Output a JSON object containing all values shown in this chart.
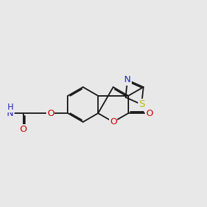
{
  "background_color": "#e8e8e8",
  "bond_color": "#1a1a1a",
  "lw": 1.4,
  "doff": 0.055,
  "figsize": [
    3.0,
    3.0
  ],
  "dpi": 100,
  "colors": {
    "O": "#cc0000",
    "N": "#2222bb",
    "S": "#bbbb00",
    "C": "#1a1a1a"
  },
  "xlim": [
    0.0,
    10.0
  ],
  "ylim": [
    1.0,
    9.5
  ]
}
